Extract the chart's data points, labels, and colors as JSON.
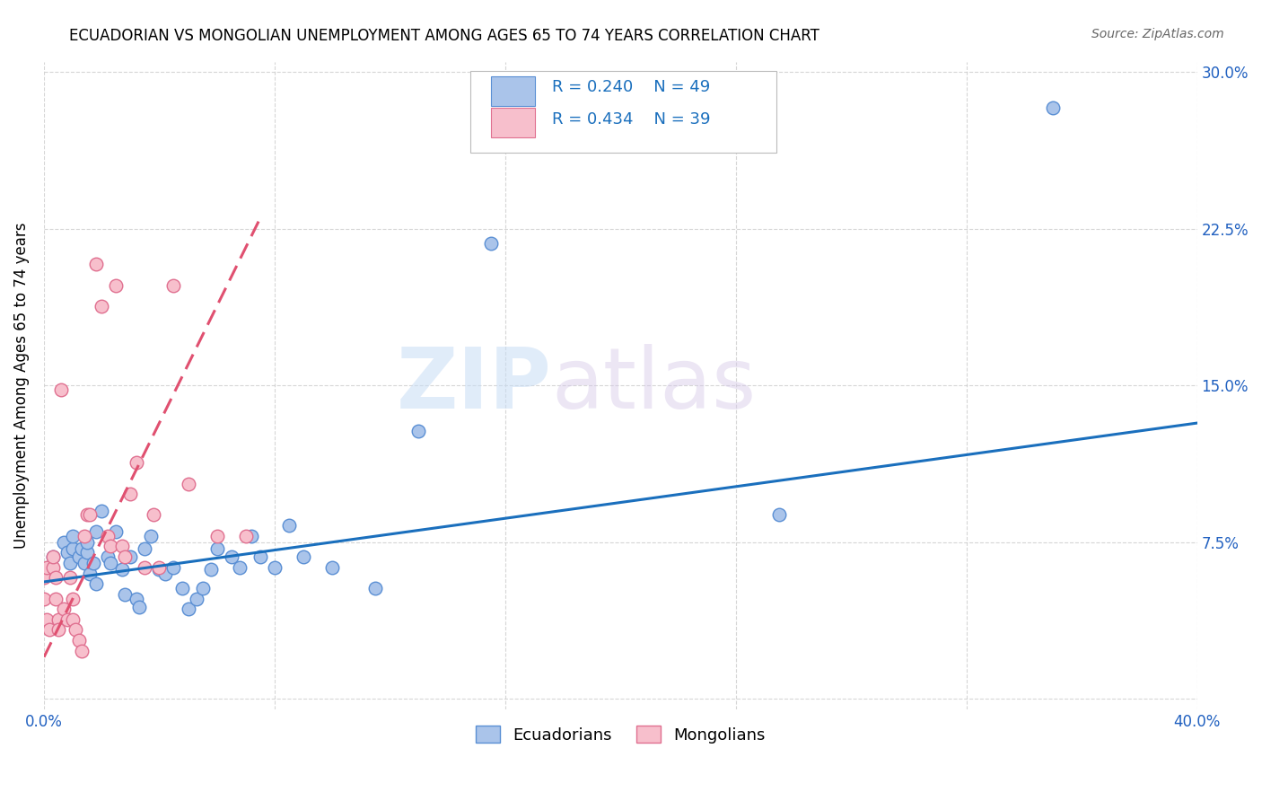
{
  "title": "ECUADORIAN VS MONGOLIAN UNEMPLOYMENT AMONG AGES 65 TO 74 YEARS CORRELATION CHART",
  "source": "Source: ZipAtlas.com",
  "ylabel": "Unemployment Among Ages 65 to 74 years",
  "xlim": [
    0.0,
    0.4
  ],
  "ylim": [
    -0.005,
    0.305
  ],
  "xticks": [
    0.0,
    0.08,
    0.16,
    0.24,
    0.32,
    0.4
  ],
  "yticks": [
    0.0,
    0.075,
    0.15,
    0.225,
    0.3
  ],
  "ecuadorian_color": "#aac4ea",
  "mongolian_color": "#f7bfcc",
  "ecuadorian_edge": "#5a8fd4",
  "mongolian_edge": "#e07090",
  "trend_ecuadorian_color": "#1a6fbd",
  "trend_mongolian_color": "#e05070",
  "R_ecu": 0.24,
  "N_ecu": 49,
  "R_mon": 0.434,
  "N_mon": 39,
  "watermark_zip": "ZIP",
  "watermark_atlas": "atlas",
  "ecuadorian_x": [
    0.001,
    0.003,
    0.007,
    0.008,
    0.009,
    0.01,
    0.01,
    0.012,
    0.013,
    0.014,
    0.015,
    0.015,
    0.016,
    0.017,
    0.018,
    0.018,
    0.02,
    0.022,
    0.023,
    0.025,
    0.027,
    0.028,
    0.03,
    0.032,
    0.033,
    0.035,
    0.037,
    0.04,
    0.042,
    0.045,
    0.048,
    0.05,
    0.053,
    0.055,
    0.058,
    0.06,
    0.065,
    0.068,
    0.072,
    0.075,
    0.08,
    0.085,
    0.09,
    0.1,
    0.115,
    0.13,
    0.155,
    0.255,
    0.35
  ],
  "ecuadorian_y": [
    0.06,
    0.068,
    0.075,
    0.07,
    0.065,
    0.072,
    0.078,
    0.068,
    0.072,
    0.065,
    0.07,
    0.075,
    0.06,
    0.065,
    0.055,
    0.08,
    0.09,
    0.068,
    0.065,
    0.08,
    0.062,
    0.05,
    0.068,
    0.048,
    0.044,
    0.072,
    0.078,
    0.062,
    0.06,
    0.063,
    0.053,
    0.043,
    0.048,
    0.053,
    0.062,
    0.072,
    0.068,
    0.063,
    0.078,
    0.068,
    0.063,
    0.083,
    0.068,
    0.063,
    0.053,
    0.128,
    0.218,
    0.088,
    0.283
  ],
  "mongolian_x": [
    0.0,
    0.0,
    0.001,
    0.001,
    0.002,
    0.003,
    0.003,
    0.004,
    0.004,
    0.005,
    0.005,
    0.006,
    0.007,
    0.008,
    0.009,
    0.01,
    0.01,
    0.011,
    0.012,
    0.013,
    0.014,
    0.015,
    0.016,
    0.018,
    0.02,
    0.022,
    0.023,
    0.025,
    0.027,
    0.028,
    0.03,
    0.032,
    0.035,
    0.038,
    0.04,
    0.045,
    0.05,
    0.06,
    0.07
  ],
  "mongolian_y": [
    0.048,
    0.058,
    0.063,
    0.038,
    0.033,
    0.063,
    0.068,
    0.058,
    0.048,
    0.038,
    0.033,
    0.148,
    0.043,
    0.038,
    0.058,
    0.048,
    0.038,
    0.033,
    0.028,
    0.023,
    0.078,
    0.088,
    0.088,
    0.208,
    0.188,
    0.078,
    0.073,
    0.198,
    0.073,
    0.068,
    0.098,
    0.113,
    0.063,
    0.088,
    0.063,
    0.198,
    0.103,
    0.078,
    0.078
  ],
  "ecu_trend_x": [
    0.0,
    0.4
  ],
  "ecu_trend_y": [
    0.056,
    0.132
  ],
  "mon_trend_x": [
    0.0,
    0.075
  ],
  "mon_trend_y": [
    0.02,
    0.23
  ]
}
